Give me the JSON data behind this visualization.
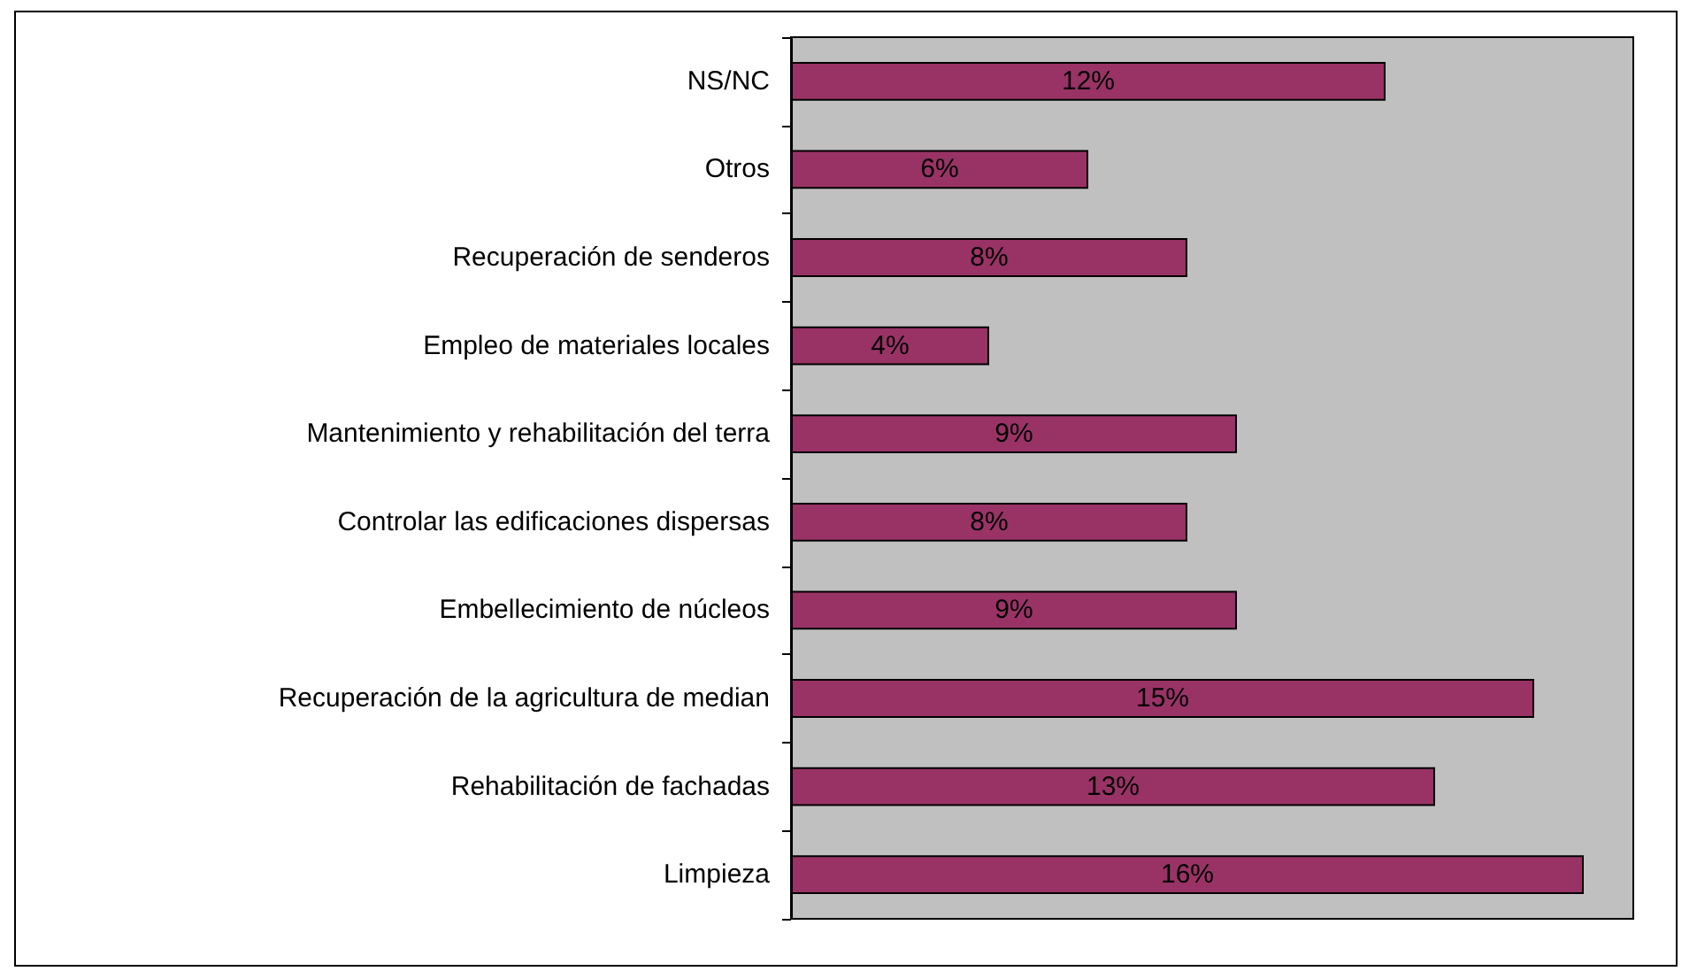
{
  "chart_data": {
    "type": "bar",
    "orientation": "horizontal",
    "categories": [
      "NS/NC",
      "Otros",
      "Recuperación de senderos",
      "Empleo de materiales locales",
      "Mantenimiento y rehabilitación del terra",
      "Controlar las edificaciones dispersas",
      "Embellecimiento de núcleos",
      "Recuperación de la agricultura de median",
      "Rehabilitación de fachadas",
      "Limpieza"
    ],
    "values": [
      12,
      6,
      8,
      4,
      9,
      8,
      9,
      15,
      13,
      16
    ],
    "value_labels": [
      "12%",
      "6%",
      "8%",
      "4%",
      "9%",
      "8%",
      "9%",
      "15%",
      "13%",
      "16%"
    ],
    "color": "#993366",
    "xlim": [
      0,
      17
    ]
  }
}
